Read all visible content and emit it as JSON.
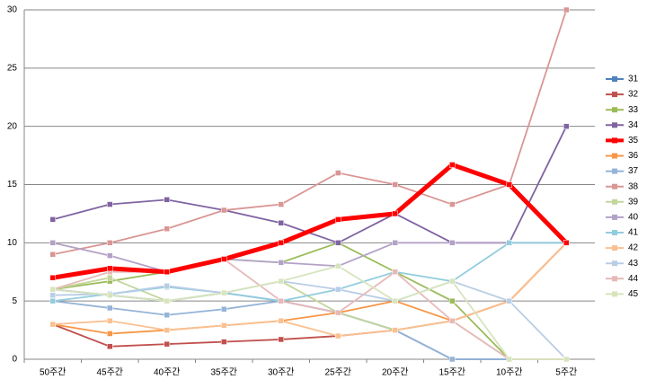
{
  "chart_data": {
    "type": "line",
    "categories": [
      "50주간",
      "45주간",
      "40주간",
      "35주간",
      "30주간",
      "25주간",
      "20주간",
      "15주간",
      "10주간",
      "5주간"
    ],
    "ylim": [
      0,
      30
    ],
    "yticks": [
      0,
      5,
      10,
      15,
      20,
      25,
      30
    ],
    "grid": true,
    "legend": "right",
    "series": [
      {
        "name": "31",
        "color": "#4f81bd",
        "values": [
          6,
          5.5,
          5,
          5.7,
          5,
          4,
          2.5,
          0,
          0,
          0
        ]
      },
      {
        "name": "32",
        "color": "#c0504d",
        "values": [
          3,
          1.1,
          1.3,
          1.5,
          1.7,
          2,
          2.5,
          3.3,
          5,
          10
        ]
      },
      {
        "name": "33",
        "color": "#9bbb59",
        "values": [
          6,
          6.7,
          7.5,
          8.6,
          8.3,
          10,
          7.5,
          5,
          0,
          0
        ]
      },
      {
        "name": "34",
        "color": "#8064a2",
        "values": [
          12,
          13.3,
          13.7,
          12.8,
          11.7,
          10,
          12.5,
          10,
          10,
          20
        ]
      },
      {
        "name": "35",
        "color": "#ff0000",
        "values": [
          7,
          7.8,
          7.5,
          8.6,
          10,
          12,
          12.5,
          16.7,
          15,
          10
        ]
      },
      {
        "name": "36",
        "color": "#f79646",
        "values": [
          3,
          2.2,
          2.5,
          2.9,
          3.3,
          4,
          5,
          3.3,
          5,
          10
        ]
      },
      {
        "name": "37",
        "color": "#95b3d7",
        "values": [
          5,
          4.4,
          3.8,
          4.3,
          5,
          4,
          2.5,
          0,
          0,
          0
        ]
      },
      {
        "name": "38",
        "color": "#d99694",
        "values": [
          9,
          10,
          11.2,
          12.8,
          13.3,
          16,
          15,
          13.3,
          15,
          30
        ]
      },
      {
        "name": "39",
        "color": "#c3d69b",
        "values": [
          6,
          7,
          5,
          5.7,
          6.7,
          4,
          2.5,
          3.3,
          0,
          0
        ]
      },
      {
        "name": "40",
        "color": "#b3a2c7",
        "values": [
          10,
          8.9,
          7.5,
          8.6,
          8.3,
          8,
          10,
          10,
          10,
          10
        ]
      },
      {
        "name": "41",
        "color": "#93cddd",
        "values": [
          5,
          5.6,
          6.2,
          5.7,
          5,
          6,
          7.5,
          6.7,
          10,
          10
        ]
      },
      {
        "name": "42",
        "color": "#fac090",
        "values": [
          3,
          3.3,
          2.5,
          2.9,
          3.3,
          2,
          2.5,
          3.3,
          5,
          10
        ]
      },
      {
        "name": "43",
        "color": "#b9cde5",
        "values": [
          5.5,
          5.6,
          6.3,
          5.7,
          6.7,
          6,
          5,
          6.7,
          5,
          0
        ]
      },
      {
        "name": "44",
        "color": "#e6b9b8",
        "values": [
          6,
          7.5,
          7.5,
          8.6,
          5,
          4,
          7.5,
          3.3,
          0,
          0
        ]
      },
      {
        "name": "45",
        "color": "#d7e4bd",
        "values": [
          6,
          5.5,
          5,
          5.7,
          6.7,
          8,
          5,
          6.7,
          0,
          0
        ]
      }
    ]
  }
}
